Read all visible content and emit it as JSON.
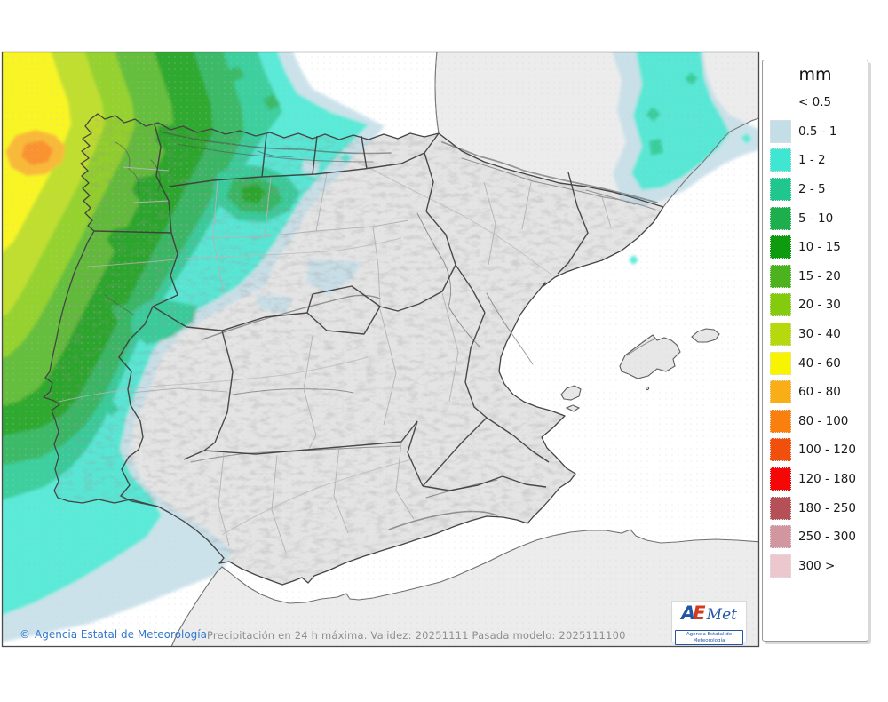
{
  "legend": {
    "title": "mm",
    "entries": [
      {
        "label": "< 0.5",
        "color": null
      },
      {
        "label": "0.5 - 1",
        "color": "#c4dee8"
      },
      {
        "label": "1 - 2",
        "color": "#3fe7d2"
      },
      {
        "label": "2 - 5",
        "color": "#1fc78e"
      },
      {
        "label": "5 - 10",
        "color": "#1daf4e"
      },
      {
        "label": "10 - 15",
        "color": "#0f9b10"
      },
      {
        "label": "15 - 20",
        "color": "#4cb31e"
      },
      {
        "label": "20 - 30",
        "color": "#83cb0c"
      },
      {
        "label": "30 - 40",
        "color": "#b6d90e"
      },
      {
        "label": "40 - 60",
        "color": "#f8f400"
      },
      {
        "label": "60 - 80",
        "color": "#f9ad16"
      },
      {
        "label": "80 - 100",
        "color": "#f97f0f"
      },
      {
        "label": "100 - 120",
        "color": "#f1500c"
      },
      {
        "label": "120 - 180",
        "color": "#f60707"
      },
      {
        "label": "180 - 250",
        "color": "#b55056"
      },
      {
        "label": "250 - 300",
        "color": "#d296a0"
      },
      {
        "label": "300 >",
        "color": "#ecc8ce"
      }
    ]
  },
  "footer": {
    "copyright_symbol": "©",
    "copyright_text": "Agencia Estatal de Meteorología",
    "model_info": "Precipitación en 24 h máxima. Validez: 20251111 Pasada modelo: 2025111100"
  },
  "logo": {
    "part_a": "A",
    "part_e": "E",
    "part_met": "Met",
    "caption": "Agencia Estatal de Meteorología"
  },
  "map": {
    "sea_color": "#ffffff",
    "land_color": "#e4e4e4",
    "neighbor_land_color": "#ececec",
    "border_color": "#3d3d3d"
  }
}
